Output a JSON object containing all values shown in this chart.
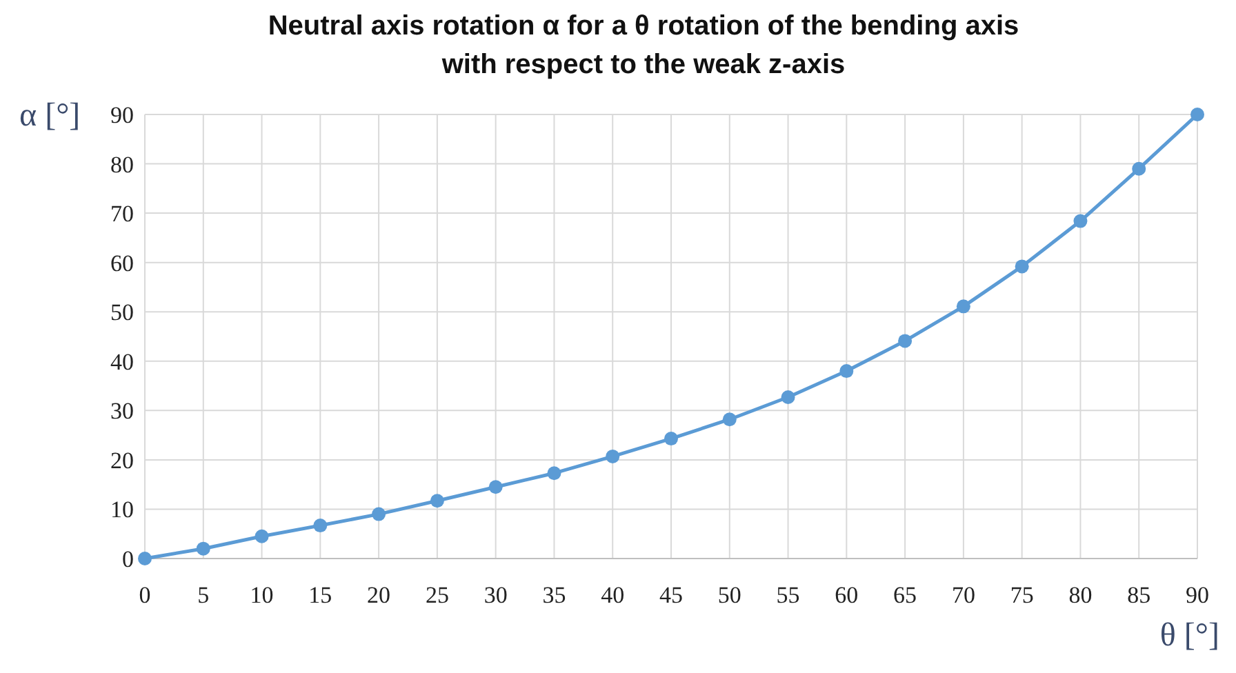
{
  "chart_data": {
    "type": "line",
    "title": "Neutral axis rotation α for a θ rotation of the bending axis\nwith respect to the weak z-axis",
    "xlabel": "θ [°]",
    "ylabel": "α [°]",
    "x": [
      0,
      5,
      10,
      15,
      20,
      25,
      30,
      35,
      40,
      45,
      50,
      55,
      60,
      65,
      70,
      75,
      80,
      85,
      90
    ],
    "series": [
      {
        "color": "#5b9bd5",
        "values": [
          0,
          2.0,
          4.5,
          6.7,
          9.0,
          11.7,
          14.5,
          17.3,
          20.7,
          24.3,
          28.2,
          32.7,
          38.0,
          44.1,
          51.1,
          59.2,
          68.4,
          79.0,
          90.0
        ]
      }
    ],
    "xlim": [
      0,
      90
    ],
    "xticks": [
      0,
      5,
      10,
      15,
      20,
      25,
      30,
      35,
      40,
      45,
      50,
      55,
      60,
      65,
      70,
      75,
      80,
      85,
      90
    ],
    "ylim": [
      0,
      90
    ],
    "yticks": [
      0,
      10,
      20,
      30,
      40,
      50,
      60,
      70,
      80,
      90
    ],
    "grid": true,
    "marker": "circle",
    "line_style": "solid"
  }
}
